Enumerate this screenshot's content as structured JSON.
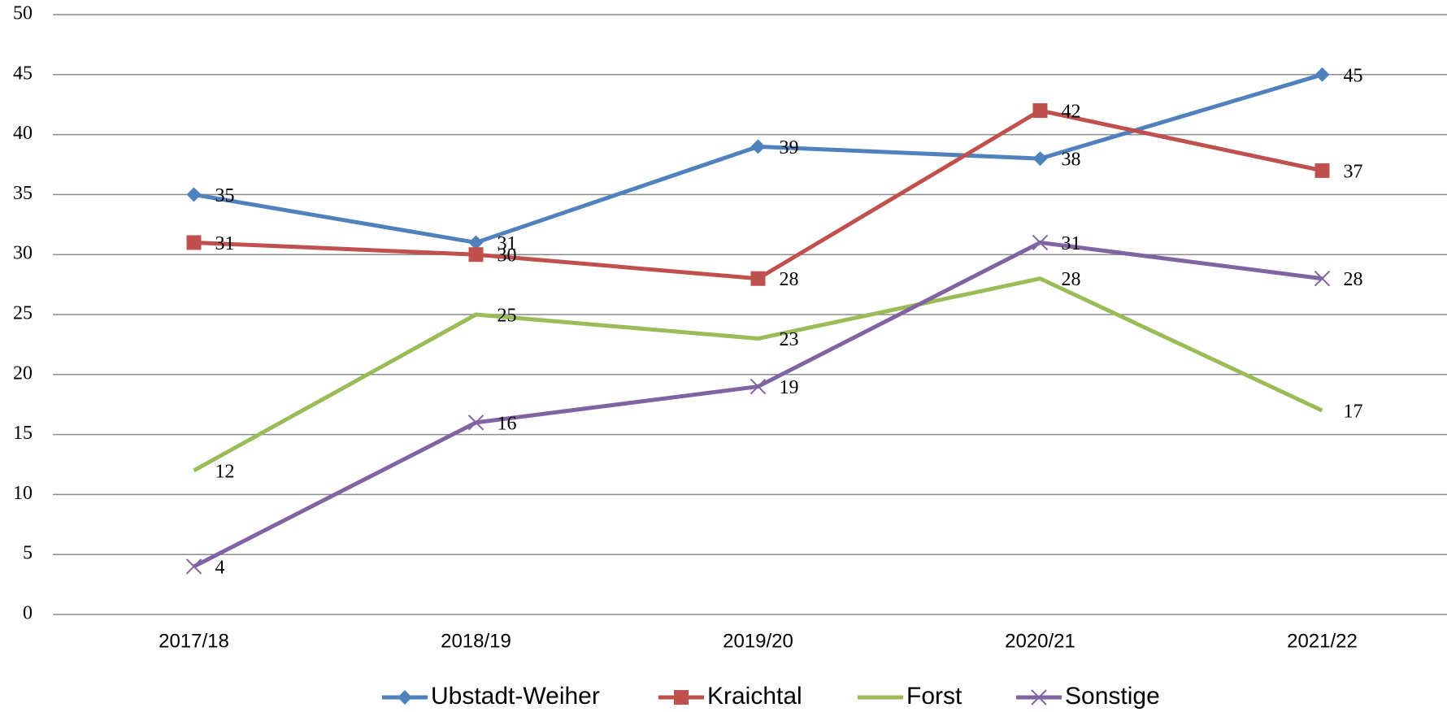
{
  "chart_data": {
    "type": "line",
    "categories": [
      "2017/18",
      "2018/19",
      "2019/20",
      "2020/21",
      "2021/22"
    ],
    "series": [
      {
        "name": "Ubstadt-Weiher",
        "color": "#4f81bd",
        "marker": "diamond",
        "values": [
          35,
          31,
          39,
          38,
          45
        ]
      },
      {
        "name": "Kraichtal",
        "color": "#c0504d",
        "marker": "square",
        "values": [
          31,
          30,
          28,
          42,
          37
        ]
      },
      {
        "name": "Forst",
        "color": "#9bbb59",
        "marker": "none",
        "values": [
          12,
          25,
          23,
          28,
          17
        ]
      },
      {
        "name": "Sonstige",
        "color": "#8064a2",
        "marker": "x",
        "values": [
          4,
          16,
          19,
          31,
          28
        ]
      }
    ],
    "ylim": [
      0,
      50
    ],
    "yticks": [
      0,
      5,
      10,
      15,
      20,
      25,
      30,
      35,
      40,
      45,
      50
    ],
    "grid": true,
    "legend": "bottom"
  }
}
